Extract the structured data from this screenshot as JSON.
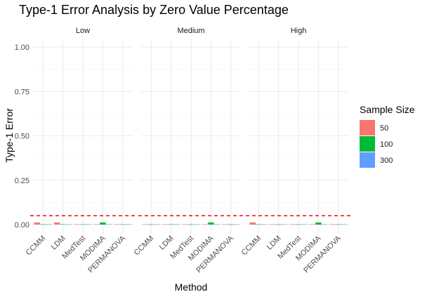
{
  "chart_data": {
    "type": "bar",
    "title": "Type-1 Error Analysis by Zero Value Percentage",
    "xlabel": "Method",
    "ylabel": "Type-1 Error",
    "ylim": [
      0,
      1.0
    ],
    "yticks": [
      "0.00",
      "0.25",
      "0.50",
      "0.75",
      "1.00"
    ],
    "ytick_values": [
      0,
      0.25,
      0.5,
      0.75,
      1.0
    ],
    "facets": [
      "Low",
      "Medium",
      "High"
    ],
    "categories": [
      "CCMM",
      "LDM",
      "MedTest",
      "MODIMA",
      "PERMANOVA"
    ],
    "legend_title": "Sample Size",
    "legend_position": "right",
    "grid": true,
    "reference_line": {
      "y": 0.05,
      "style": "dashed",
      "color": "#E41A1C"
    },
    "series": [
      {
        "name": "50",
        "color": "#F8766D",
        "values": {
          "Low": [
            0.012,
            0.012,
            0.002,
            0.002,
            0.002
          ],
          "Medium": [
            0.002,
            0.002,
            0.002,
            0.002,
            0.002
          ],
          "High": [
            0.012,
            0.002,
            0.002,
            0.002,
            0.002
          ]
        }
      },
      {
        "name": "100",
        "color": "#00BA38",
        "values": {
          "Low": [
            0.002,
            0.002,
            0.002,
            0.012,
            0.002
          ],
          "Medium": [
            0.002,
            0.002,
            0.002,
            0.012,
            0.002
          ],
          "High": [
            0.002,
            0.002,
            0.002,
            0.012,
            0.002
          ]
        }
      },
      {
        "name": "300",
        "color": "#619CFF",
        "values": {
          "Low": [
            0.002,
            0.002,
            0.002,
            0.002,
            0.002
          ],
          "Medium": [
            0.002,
            0.002,
            0.002,
            0.002,
            0.002
          ],
          "High": [
            0.002,
            0.002,
            0.002,
            0.002,
            0.002
          ]
        }
      }
    ]
  }
}
